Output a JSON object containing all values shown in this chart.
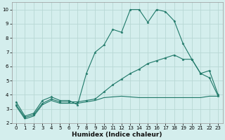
{
  "title": "",
  "xlabel": "Humidex (Indice chaleur)",
  "background_color": "#d4eeed",
  "grid_color": "#b8d8d4",
  "line_color": "#1e7868",
  "xlim": [
    -0.5,
    23.5
  ],
  "ylim": [
    2,
    10.5
  ],
  "xticks": [
    0,
    1,
    2,
    3,
    4,
    5,
    6,
    7,
    8,
    9,
    10,
    11,
    12,
    13,
    14,
    15,
    16,
    17,
    18,
    19,
    20,
    21,
    22,
    23
  ],
  "yticks": [
    2,
    3,
    4,
    5,
    6,
    7,
    8,
    9,
    10
  ],
  "line1_x": [
    0,
    1,
    2,
    3,
    4,
    5,
    6,
    7,
    8,
    9,
    10,
    11,
    12,
    13,
    14,
    15,
    16,
    17,
    18,
    19,
    20,
    21,
    22,
    23
  ],
  "line1_y": [
    3.5,
    2.5,
    2.7,
    3.6,
    3.85,
    3.6,
    3.6,
    3.3,
    5.5,
    7.0,
    7.5,
    8.6,
    8.4,
    10.0,
    10.0,
    9.1,
    10.0,
    9.85,
    9.2,
    7.6,
    6.5,
    5.5,
    5.7,
    4.0
  ],
  "line2_x": [
    0,
    1,
    2,
    3,
    4,
    5,
    6,
    7,
    8,
    9,
    10,
    11,
    12,
    13,
    14,
    15,
    16,
    17,
    18,
    19,
    20,
    21,
    22,
    23
  ],
  "line2_y": [
    3.3,
    2.4,
    2.6,
    3.4,
    3.7,
    3.5,
    3.5,
    3.5,
    3.6,
    3.7,
    4.2,
    4.7,
    5.1,
    5.5,
    5.8,
    6.2,
    6.4,
    6.6,
    6.8,
    6.5,
    6.5,
    5.5,
    5.2,
    3.9
  ],
  "line3_x": [
    0,
    1,
    2,
    3,
    4,
    5,
    6,
    7,
    8,
    9,
    10,
    11,
    12,
    13,
    14,
    15,
    16,
    17,
    18,
    19,
    20,
    21,
    22,
    23
  ],
  "line3_y": [
    3.2,
    2.3,
    2.5,
    3.3,
    3.6,
    3.4,
    3.4,
    3.4,
    3.5,
    3.6,
    3.8,
    3.85,
    3.9,
    3.85,
    3.8,
    3.8,
    3.8,
    3.8,
    3.8,
    3.8,
    3.8,
    3.8,
    3.9,
    3.9
  ],
  "xlabel_fontsize": 6.5,
  "tick_fontsize": 5.0
}
